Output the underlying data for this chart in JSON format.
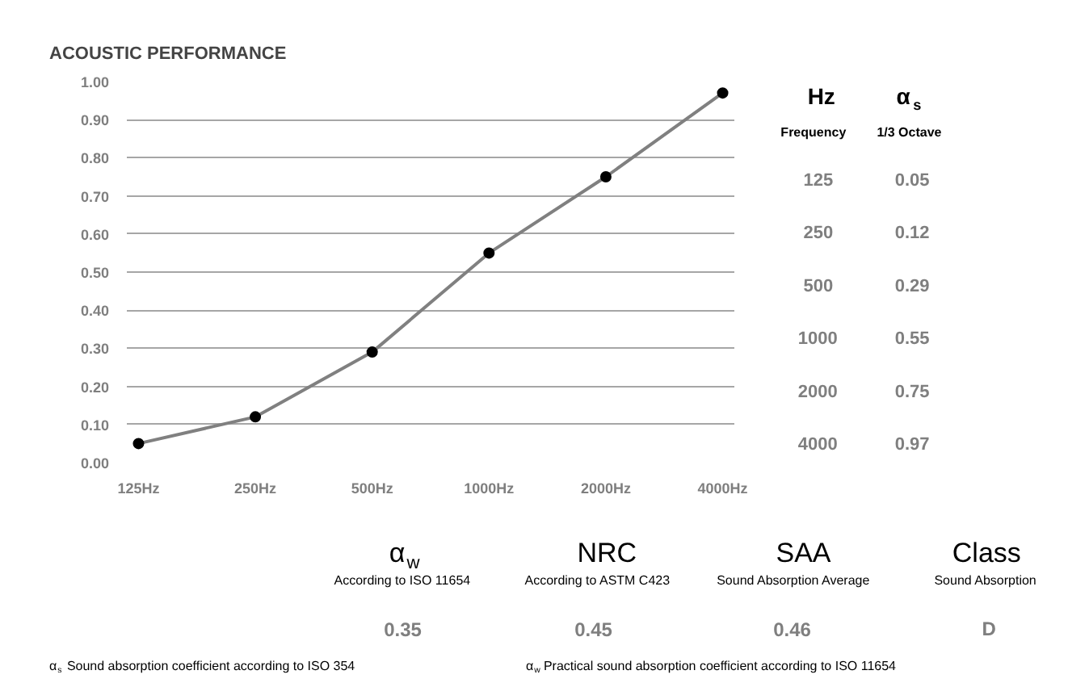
{
  "chart_data": {
    "type": "line",
    "title": "ACOUSTIC PERFORMANCE",
    "categories": [
      "125Hz",
      "250Hz",
      "500Hz",
      "1000Hz",
      "2000Hz",
      "4000Hz"
    ],
    "values": [
      0.05,
      0.12,
      0.29,
      0.55,
      0.75,
      0.97
    ],
    "color": "#808080",
    "marker": "circle",
    "line_style": "solid",
    "grid": "y",
    "ylim": [
      0,
      1
    ],
    "yticks": [
      {
        "value": 0,
        "label": "0.00"
      },
      {
        "value": 0.1,
        "label": "0.10"
      },
      {
        "value": 0.2,
        "label": "0.20"
      },
      {
        "value": 0.3,
        "label": "0.30"
      },
      {
        "value": 0.4,
        "label": "0.40"
      },
      {
        "value": 0.5,
        "label": "0.50"
      },
      {
        "value": 0.6,
        "label": "0.60"
      },
      {
        "value": 0.7,
        "label": "0.70"
      },
      {
        "value": 0.8,
        "label": "0.80"
      },
      {
        "value": 0.9,
        "label": "0.90"
      },
      {
        "value": 1,
        "label": "1.00"
      }
    ],
    "annotations": [
      "Hz",
      "α$_{s}$",
      "Frequency",
      "1/3 Octave",
      "125",
      "0.05",
      "250",
      "0.12",
      "500",
      "0.29",
      "1000",
      "0.55",
      "2000",
      "0.75",
      "4000",
      "0.97",
      "α$_{w}$",
      "NRC",
      "SAA",
      "Class",
      "According to ISO 11654",
      "According to ASTM C423",
      "Sound Absorption Average",
      "Sound Absorption",
      "0.35",
      "0.45",
      "0.46",
      "D",
      "α$_{s}$ Sound absorption coefficient according to ISO 354",
      "α$_{w}$ Practical sound absorption coefficient according to ISO 11654"
    ]
  }
}
